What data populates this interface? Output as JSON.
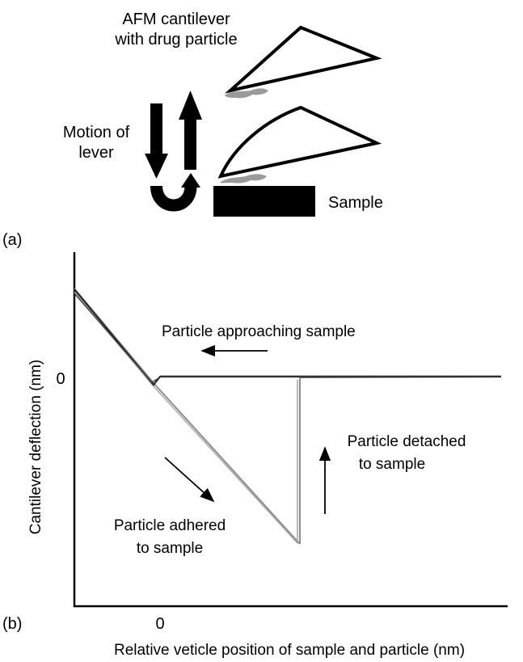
{
  "panel_a": {
    "label": "(a)",
    "cantilever_label_line1": "AFM cantilever",
    "cantilever_label_line2": "with drug particle",
    "motion_label_line1": "Motion of",
    "motion_label_line2": "lever",
    "sample_label": "Sample"
  },
  "panel_b": {
    "label": "(b)",
    "y_axis_title": "Cantilever deflection (nm)",
    "x_axis_title": "Relative veticle position of sample and particle (nm)",
    "y_zero_tick": "0",
    "x_zero_tick": "0",
    "annotation_approaching": "Particle approaching sample",
    "annotation_adhered_line1": "Particle adhered",
    "annotation_adhered_line2": "to sample",
    "annotation_detached_line1": "Particle detached",
    "annotation_detached_line2": "to sample"
  },
  "colors": {
    "approach_curve": "#222222",
    "retract_curve": "#8c8c8c",
    "particle": "#9a9a9a",
    "ink": "#000000"
  }
}
